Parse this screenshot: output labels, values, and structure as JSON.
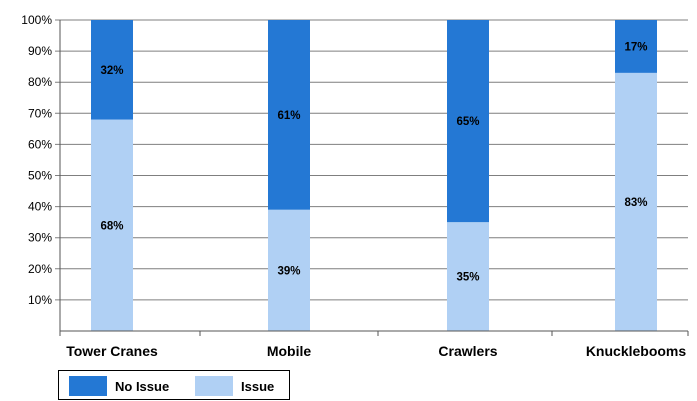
{
  "chart_data": {
    "type": "bar",
    "stacked": true,
    "percent": true,
    "categories": [
      "Tower Cranes",
      "Mobile",
      "Crawlers",
      "Knucklebooms"
    ],
    "series": [
      {
        "name": "Issue",
        "values": [
          68,
          39,
          35,
          83
        ],
        "labels": [
          "68%",
          "39%",
          "35%",
          "83%"
        ],
        "color": "#b0d0f4"
      },
      {
        "name": "No Issue",
        "values": [
          32,
          61,
          65,
          17
        ],
        "labels": [
          "32%",
          "61%",
          "65%",
          "17%"
        ],
        "color": "#2478d4"
      }
    ],
    "ylim": [
      0,
      100
    ],
    "yticks": [
      "10%",
      "20%",
      "30%",
      "40%",
      "50%",
      "60%",
      "70%",
      "80%",
      "90%",
      "100%"
    ],
    "grid": true,
    "legend_position": "bottom-left",
    "title": "",
    "xlabel": "",
    "ylabel": ""
  },
  "legend": {
    "items": [
      {
        "label": "No Issue",
        "color": "#2478d4"
      },
      {
        "label": "Issue",
        "color": "#b0d0f4"
      }
    ]
  }
}
